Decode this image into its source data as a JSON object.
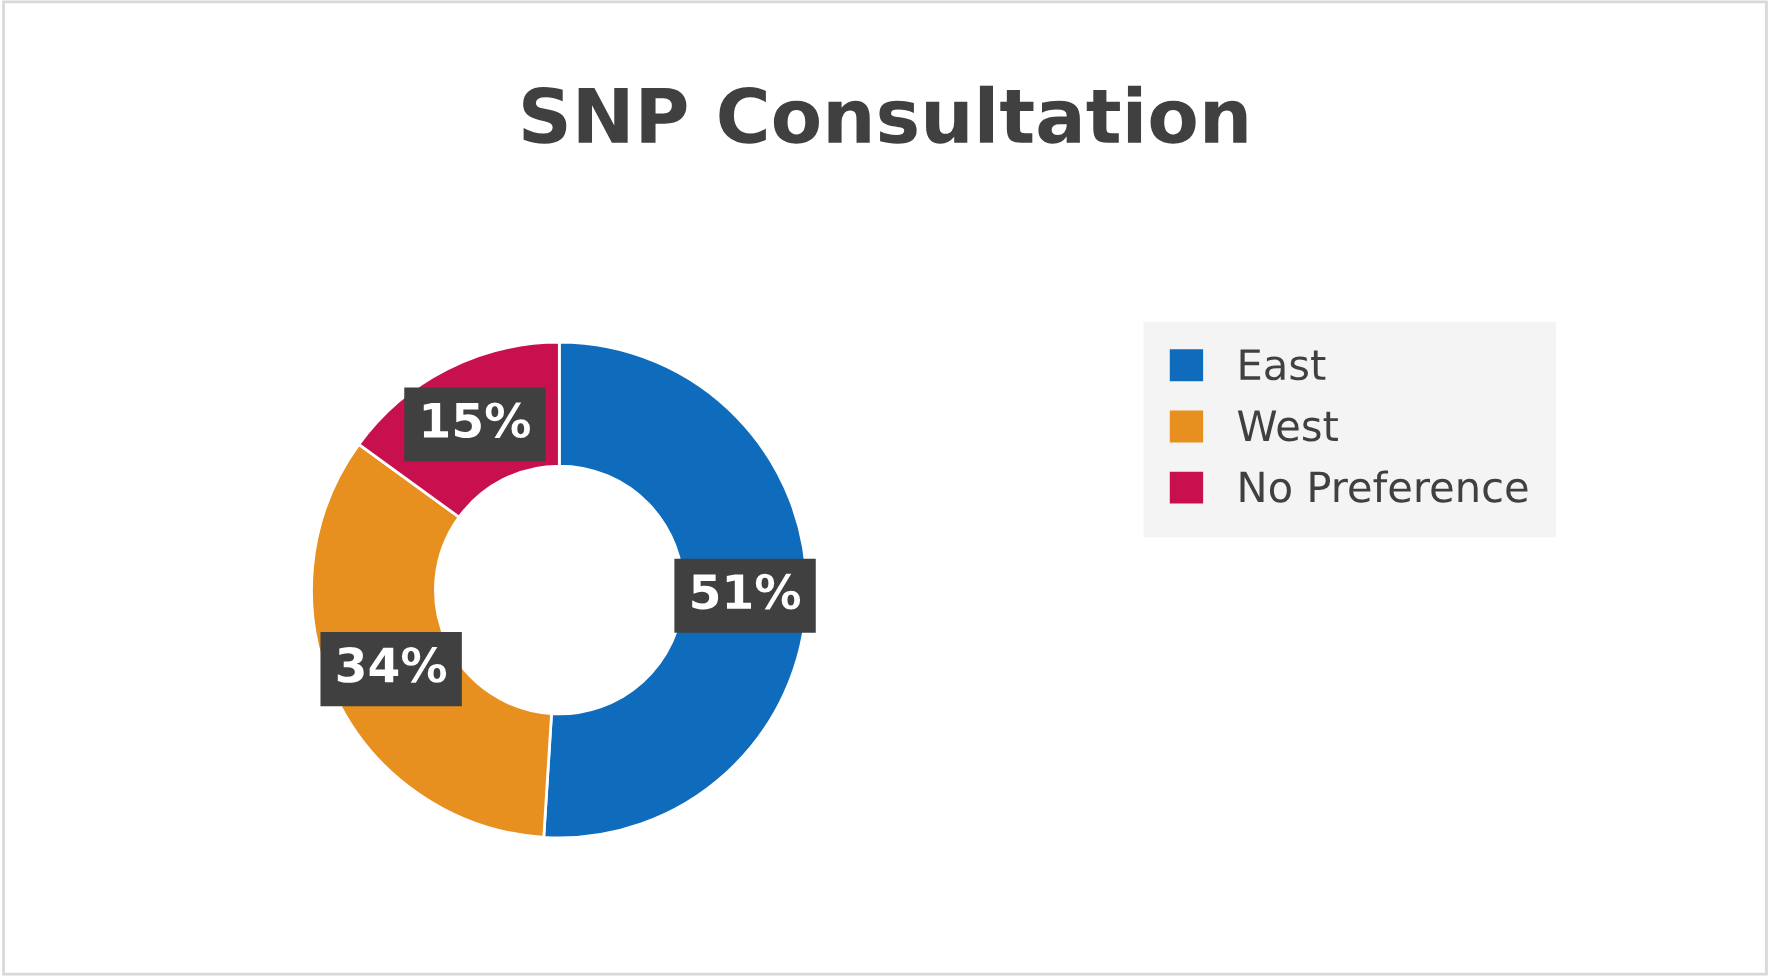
{
  "chart_data": {
    "type": "donut",
    "title": "SNP Consultation",
    "categories": [
      "East",
      "West",
      "No Preference"
    ],
    "values": [
      51,
      34,
      15
    ],
    "colors": [
      "#0f6cbd",
      "#e8901f",
      "#c8104f"
    ],
    "value_labels": [
      "51%",
      "34%",
      "15%"
    ],
    "legend": "right"
  }
}
